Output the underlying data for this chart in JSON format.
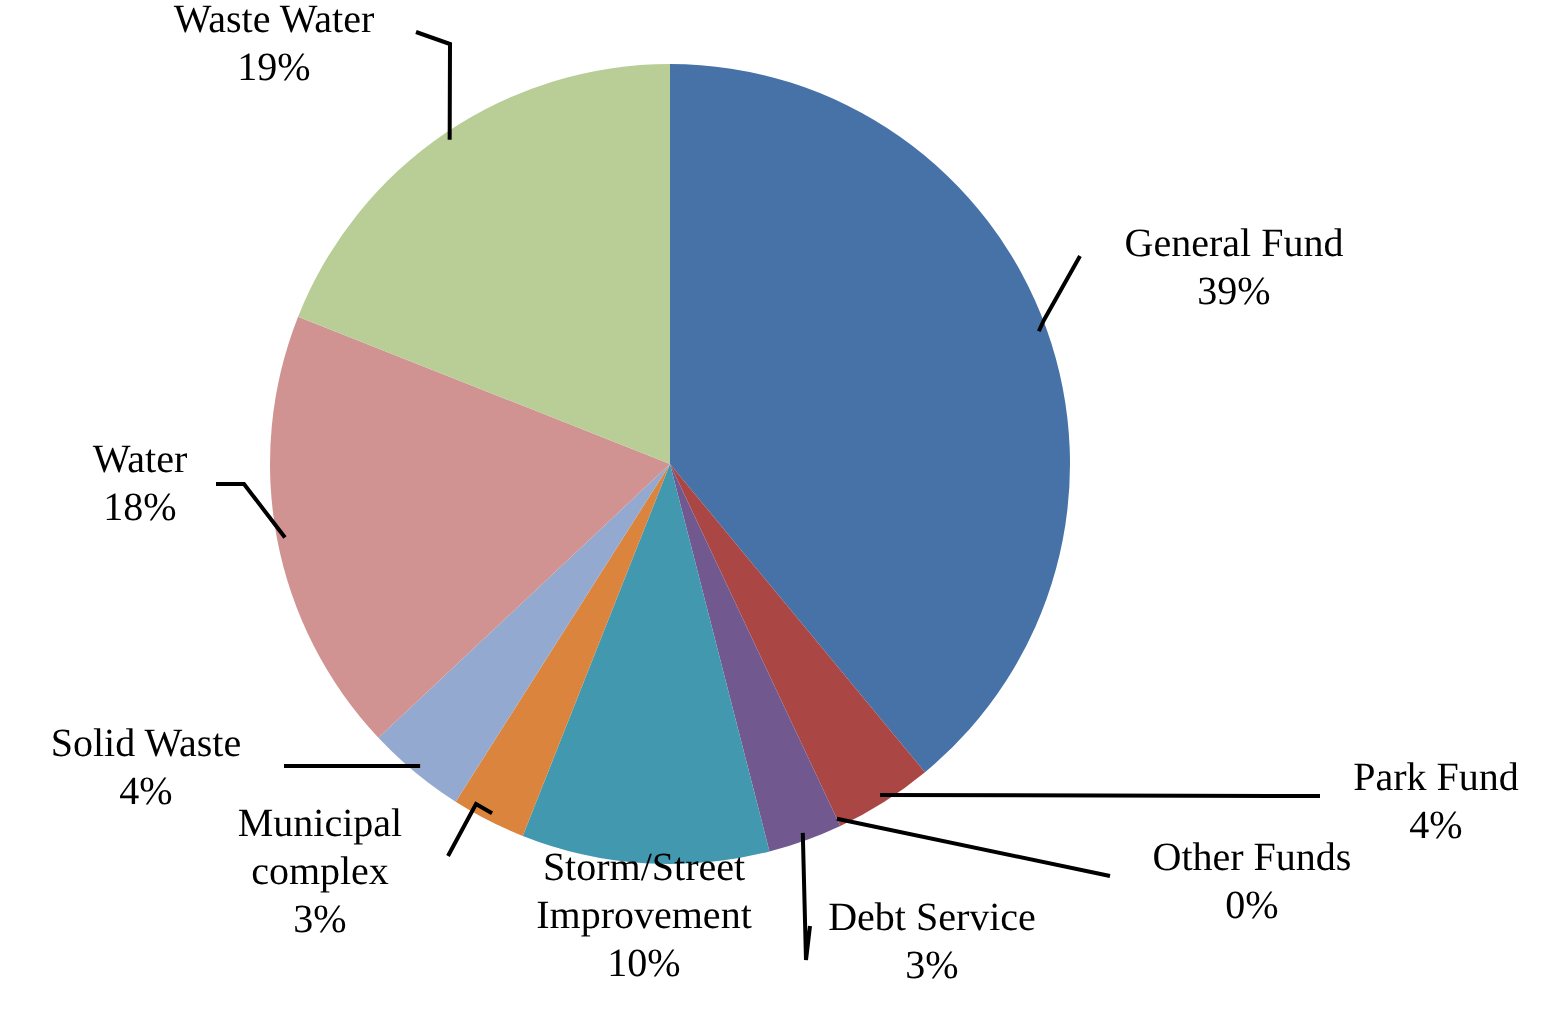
{
  "chart_data": {
    "type": "pie",
    "categories": [
      "General Fund",
      "Park Fund",
      "Other Funds",
      "Debt Service",
      "Storm/Street Improvement",
      "Municipal complex",
      "Solid Waste",
      "Water",
      "Waste Water"
    ],
    "values": [
      39,
      4,
      0,
      3,
      10,
      3,
      4,
      18,
      19
    ],
    "value_labels": [
      "39%",
      "4%",
      "0%",
      "3%",
      "10%",
      "3%",
      "4%",
      "18%",
      "19%"
    ],
    "colors": [
      "#4672a8",
      "#aa4644",
      "#89a54e",
      "#71588f",
      "#4198af",
      "#db843d",
      "#93a9cf",
      "#d19392",
      "#b9cd96"
    ]
  }
}
